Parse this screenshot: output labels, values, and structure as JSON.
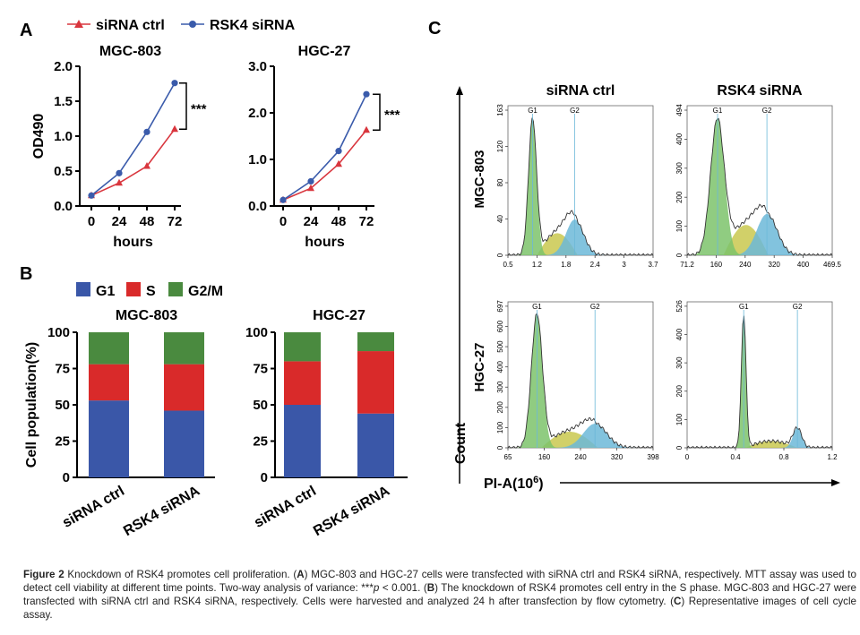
{
  "panel_labels": {
    "a": "A",
    "b": "B",
    "c": "C"
  },
  "colors": {
    "ctrl": "#d9363e",
    "rsk4": "#3a5bab",
    "g1": "#3a57a8",
    "s": "#d92a2a",
    "g2m": "#4a8a3f",
    "hist_g1": "#7cc36b",
    "hist_s": "#c9c84f",
    "hist_g2": "#6cb8d8"
  },
  "chart_data": [
    {
      "id": "A-left",
      "type": "line",
      "title": "MGC-803",
      "xlabel": "hours",
      "ylabel": "OD490",
      "x": [
        0,
        24,
        48,
        72
      ],
      "ylim": [
        0,
        2.0
      ],
      "yticks": [
        "0.0",
        "0.5",
        "1.0",
        "1.5",
        "2.0"
      ],
      "xticks": [
        "0",
        "24",
        "48",
        "72"
      ],
      "series": [
        {
          "name": "siRNA ctrl",
          "values": [
            0.15,
            0.33,
            0.57,
            1.1
          ]
        },
        {
          "name": "RSK4 siRNA",
          "values": [
            0.15,
            0.47,
            1.06,
            1.76
          ]
        }
      ],
      "annotation": "***",
      "legend": [
        "siRNA ctrl",
        "RSK4 siRNA"
      ]
    },
    {
      "id": "A-right",
      "type": "line",
      "title": "HGC-27",
      "xlabel": "hours",
      "ylabel": "",
      "x": [
        0,
        24,
        48,
        72
      ],
      "ylim": [
        0,
        3.0
      ],
      "yticks": [
        "0.0",
        "1.0",
        "2.0",
        "3.0"
      ],
      "xticks": [
        "0",
        "24",
        "48",
        "72"
      ],
      "series": [
        {
          "name": "siRNA ctrl",
          "values": [
            0.13,
            0.38,
            0.9,
            1.63
          ]
        },
        {
          "name": "RSK4 siRNA",
          "values": [
            0.13,
            0.53,
            1.18,
            2.4
          ]
        }
      ],
      "annotation": "***"
    },
    {
      "id": "B-left",
      "type": "bar",
      "title": "MGC-803",
      "ylabel": "Cell population(%)",
      "ylim": [
        0,
        100
      ],
      "yticks": [
        "0",
        "25",
        "50",
        "75",
        "100"
      ],
      "categories": [
        "siRNA ctrl",
        "RSK4 siRNA"
      ],
      "legend": [
        "G1",
        "S",
        "G2/M"
      ],
      "series": [
        {
          "name": "G1",
          "values": [
            53,
            46
          ]
        },
        {
          "name": "S",
          "values": [
            25,
            32
          ]
        },
        {
          "name": "G2/M",
          "values": [
            22,
            22
          ]
        }
      ]
    },
    {
      "id": "B-right",
      "type": "bar",
      "title": "HGC-27",
      "ylabel": "",
      "ylim": [
        0,
        100
      ],
      "yticks": [
        "0",
        "25",
        "50",
        "75",
        "100"
      ],
      "categories": [
        "siRNA ctrl",
        "RSK4 siRNA"
      ],
      "series": [
        {
          "name": "G1",
          "values": [
            50,
            44
          ]
        },
        {
          "name": "S",
          "values": [
            30,
            43
          ]
        },
        {
          "name": "G2/M",
          "values": [
            20,
            13
          ]
        }
      ]
    },
    {
      "id": "C",
      "type": "area",
      "column_titles": [
        "siRNA ctrl",
        "RSK4 siRNA"
      ],
      "row_titles": [
        "MGC-803",
        "HGC-27"
      ],
      "ylabel": "Count",
      "xlabel": "PI-A(10",
      "xlabel_sup": "6",
      "xlabel_end": ")",
      "peak_labels": [
        "G1",
        "G2"
      ],
      "histograms": [
        {
          "name": "MGC-803 siRNA ctrl",
          "yticks": [
            "0",
            "40",
            "80",
            "120",
            "163"
          ],
          "xticks": [
            "0.5",
            "1.2",
            "1.8",
            "2.4",
            "3",
            "3.7"
          ]
        },
        {
          "name": "MGC-803 RSK4 siRNA",
          "yticks": [
            "0",
            "100",
            "200",
            "300",
            "400",
            "494"
          ],
          "xticks": [
            "71.2",
            "160",
            "240",
            "320",
            "400",
            "469.5"
          ]
        },
        {
          "name": "HGC-27 siRNA ctrl",
          "yticks": [
            "0",
            "100",
            "200",
            "300",
            "400",
            "500",
            "600",
            "697"
          ],
          "xticks": [
            "65",
            "160",
            "240",
            "320",
            "398"
          ]
        },
        {
          "name": "HGC-27 RSK4 siRNA",
          "yticks": [
            "0",
            "100",
            "200",
            "300",
            "400",
            "526"
          ],
          "xticks": [
            "0",
            "0.4",
            "0.8",
            "1.2"
          ]
        }
      ]
    }
  ],
  "caption": {
    "fig": "Figure 2",
    "title": " Knockdown of RSK4 promotes cell proliferation. (",
    "A": "A",
    "t1": ") MGC-803 and HGC-27 cells were transfected with siRNA ctrl and RSK4 siRNA, respectively. MTT assay was used to detect cell viability at different time points. Two-way analysis of variance: ***",
    "p": "p",
    "t2": " < 0.001. (",
    "B": "B",
    "t3": ") The knockdown of RSK4 promotes cell entry in the S phase. MGC-803 and HGC-27 were transfected with siRNA ctrl and RSK4 siRNA, respectively. Cells were harvested and analyzed 24 h after transfection by flow cytometry. (",
    "C": "C",
    "t4": ") Representative images of cell cycle assay."
  }
}
